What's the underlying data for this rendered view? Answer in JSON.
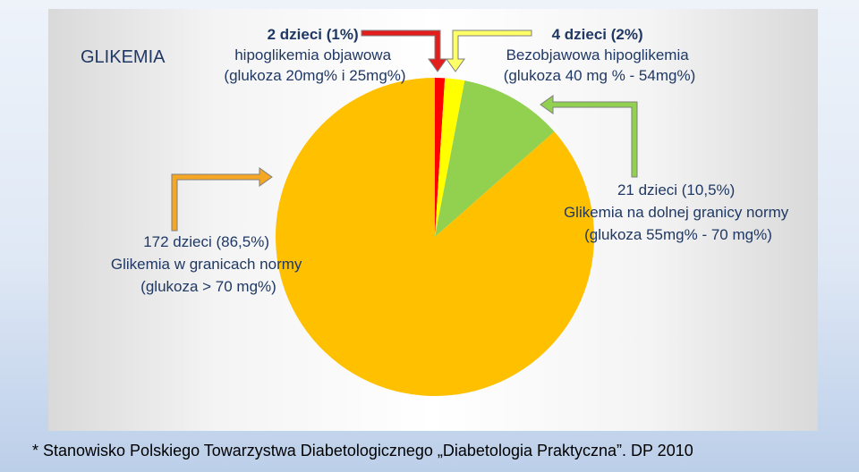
{
  "chart_data": {
    "type": "pie",
    "title": "GLIKEMIA",
    "slices": [
      {
        "value": 1,
        "color": "#ff0000",
        "label": [
          "2 dzieci (1%)",
          "hipoglikemia objawowa",
          "(glukoza 20mg% i 25mg%)"
        ]
      },
      {
        "value": 2,
        "color": "#ffff00",
        "label": [
          "4 dzieci  (2%)",
          "Bezobjawowa hipoglikemia",
          "(glukoza 40 mg % - 54mg%)"
        ]
      },
      {
        "value": 10.5,
        "color": "#92d050",
        "label": [
          "21 dzieci (10,5%)",
          "Glikemia na dolnej granicy normy",
          "(glukoza 55mg% - 70 mg%)"
        ]
      },
      {
        "value": 86.5,
        "color": "#ffc000",
        "label": [
          "172 dzieci (86,5%)",
          "Glikemia w granicach normy",
          "(glukoza > 70 mg%)"
        ]
      }
    ],
    "arrow_colors": {
      "red": "#e31c1c",
      "yellow": "#ffff66",
      "green": "#92d050",
      "orange": "#f5a623"
    }
  },
  "footnote": "* Stanowisko Polskiego Towarzystwa Diabetologicznego „Diabetologia Praktyczna”. DP 2010"
}
